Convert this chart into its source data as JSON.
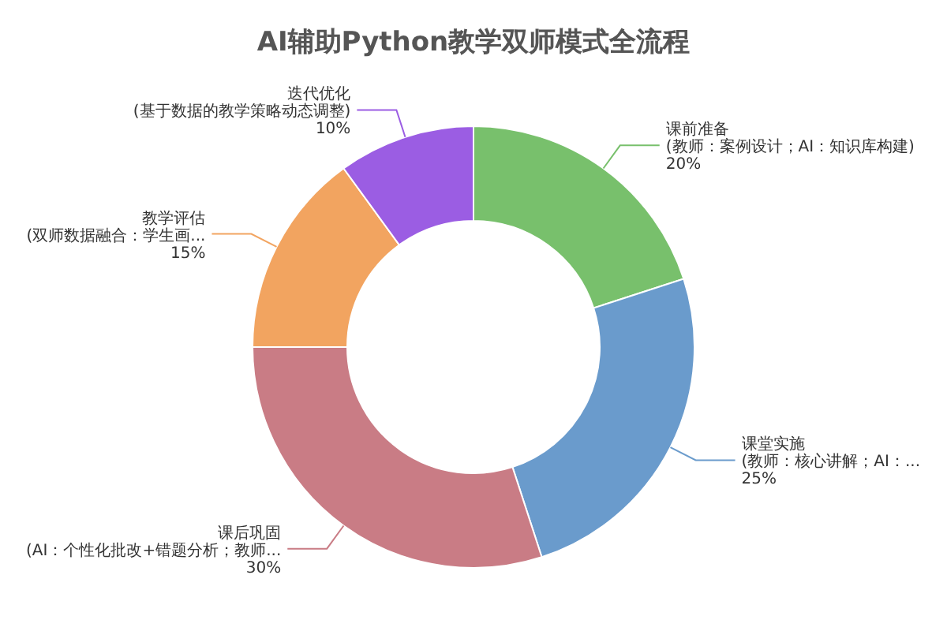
{
  "chart_data": {
    "type": "donut",
    "title": "AI辅助Python教学双师模式全流程",
    "categories": [
      "课前准备\n(教师：案例设计；AI：知识库构建)",
      "课堂实施\n(教师：核心讲解；AI：...",
      "课后巩固\n(AI：个性化批改+错题分析；教师...",
      "教学评估\n(双师数据融合：学生画...",
      "迭代优化\n(基于数据的教学策略动态调整)"
    ],
    "values": [
      20,
      25,
      30,
      15,
      10
    ],
    "value_labels": [
      "20%",
      "25%",
      "30%",
      "15%",
      "10%"
    ],
    "colors": [
      "#78c06c",
      "#6a9bcc",
      "#c97c85",
      "#f2a460",
      "#9b5de3"
    ]
  }
}
